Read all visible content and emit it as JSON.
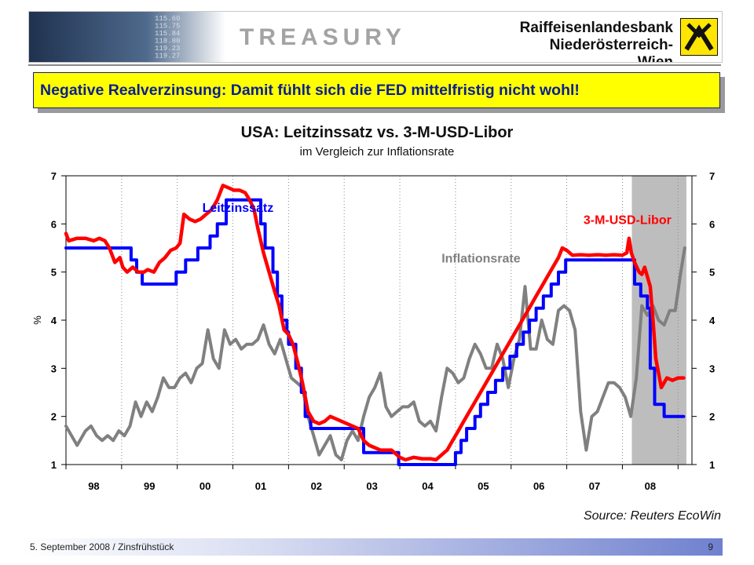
{
  "header": {
    "ticker_lines": [
      "115.60",
      "115.75",
      "115.84",
      "118.80",
      "119.23",
      "119.27"
    ],
    "title": "TREASURY",
    "bank_line1": "Raiffeisenlandesbank",
    "bank_line2": "Niederösterreich-Wien",
    "logo_icon": "raiffeisen-gable-cross-icon"
  },
  "callout": {
    "text": "Negative Realverzinsung: Damit fühlt sich die FED mittelfristig nicht wohl!"
  },
  "chart_data": {
    "type": "line",
    "title": "USA: Leitzinssatz vs. 3-M-USD-Libor",
    "subtitle": "im Vergleich zur Inflationsrate",
    "ylabel": "%",
    "ylim": [
      1,
      7
    ],
    "yticks": [
      "1",
      "2",
      "3",
      "4",
      "5",
      "6",
      "7"
    ],
    "xlim": [
      1997.5,
      2008.75
    ],
    "xticks": [
      "98",
      "99",
      "00",
      "01",
      "02",
      "03",
      "04",
      "05",
      "06",
      "07",
      "08"
    ],
    "recession_shade": [
      2007.67,
      2008.65
    ],
    "grid": "vertical-dotted",
    "series": [
      {
        "name": "Inflationsrate",
        "color": "#808080",
        "points": [
          [
            1997.5,
            1.8
          ],
          [
            1997.6,
            1.6
          ],
          [
            1997.7,
            1.4
          ],
          [
            1997.85,
            1.7
          ],
          [
            1997.95,
            1.8
          ],
          [
            1998.05,
            1.6
          ],
          [
            1998.15,
            1.5
          ],
          [
            1998.25,
            1.6
          ],
          [
            1998.35,
            1.5
          ],
          [
            1998.45,
            1.7
          ],
          [
            1998.55,
            1.6
          ],
          [
            1998.65,
            1.8
          ],
          [
            1998.75,
            2.3
          ],
          [
            1998.85,
            2.0
          ],
          [
            1998.95,
            2.3
          ],
          [
            1999.05,
            2.1
          ],
          [
            1999.15,
            2.4
          ],
          [
            1999.25,
            2.8
          ],
          [
            1999.35,
            2.6
          ],
          [
            1999.45,
            2.6
          ],
          [
            1999.55,
            2.8
          ],
          [
            1999.65,
            2.9
          ],
          [
            1999.75,
            2.7
          ],
          [
            1999.85,
            3.0
          ],
          [
            1999.95,
            3.1
          ],
          [
            2000.05,
            3.8
          ],
          [
            2000.15,
            3.2
          ],
          [
            2000.25,
            3.0
          ],
          [
            2000.35,
            3.8
          ],
          [
            2000.45,
            3.5
          ],
          [
            2000.55,
            3.6
          ],
          [
            2000.65,
            3.4
          ],
          [
            2000.75,
            3.5
          ],
          [
            2000.85,
            3.5
          ],
          [
            2000.95,
            3.6
          ],
          [
            2001.05,
            3.9
          ],
          [
            2001.15,
            3.5
          ],
          [
            2001.25,
            3.3
          ],
          [
            2001.35,
            3.6
          ],
          [
            2001.45,
            3.2
          ],
          [
            2001.55,
            2.8
          ],
          [
            2001.65,
            2.7
          ],
          [
            2001.75,
            2.6
          ],
          [
            2001.85,
            2.0
          ],
          [
            2001.95,
            1.6
          ],
          [
            2002.05,
            1.2
          ],
          [
            2002.15,
            1.4
          ],
          [
            2002.25,
            1.6
          ],
          [
            2002.35,
            1.2
          ],
          [
            2002.45,
            1.1
          ],
          [
            2002.55,
            1.5
          ],
          [
            2002.65,
            1.7
          ],
          [
            2002.75,
            1.5
          ],
          [
            2002.85,
            2.0
          ],
          [
            2002.95,
            2.4
          ],
          [
            2003.05,
            2.6
          ],
          [
            2003.15,
            2.9
          ],
          [
            2003.25,
            2.2
          ],
          [
            2003.35,
            2.0
          ],
          [
            2003.45,
            2.1
          ],
          [
            2003.55,
            2.2
          ],
          [
            2003.65,
            2.2
          ],
          [
            2003.75,
            2.3
          ],
          [
            2003.85,
            1.9
          ],
          [
            2003.95,
            1.8
          ],
          [
            2004.05,
            1.9
          ],
          [
            2004.15,
            1.7
          ],
          [
            2004.25,
            2.4
          ],
          [
            2004.35,
            3.0
          ],
          [
            2004.45,
            2.9
          ],
          [
            2004.55,
            2.7
          ],
          [
            2004.65,
            2.8
          ],
          [
            2004.75,
            3.2
          ],
          [
            2004.85,
            3.5
          ],
          [
            2004.95,
            3.3
          ],
          [
            2005.05,
            3.0
          ],
          [
            2005.15,
            3.0
          ],
          [
            2005.25,
            3.5
          ],
          [
            2005.35,
            3.2
          ],
          [
            2005.45,
            2.6
          ],
          [
            2005.55,
            3.2
          ],
          [
            2005.65,
            3.6
          ],
          [
            2005.75,
            4.7
          ],
          [
            2005.85,
            3.4
          ],
          [
            2005.95,
            3.4
          ],
          [
            2006.05,
            4.0
          ],
          [
            2006.15,
            3.6
          ],
          [
            2006.25,
            3.5
          ],
          [
            2006.35,
            4.2
          ],
          [
            2006.45,
            4.3
          ],
          [
            2006.55,
            4.2
          ],
          [
            2006.65,
            3.8
          ],
          [
            2006.75,
            2.1
          ],
          [
            2006.85,
            1.3
          ],
          [
            2006.95,
            2.0
          ],
          [
            2007.05,
            2.1
          ],
          [
            2007.15,
            2.4
          ],
          [
            2007.25,
            2.7
          ],
          [
            2007.35,
            2.7
          ],
          [
            2007.45,
            2.6
          ],
          [
            2007.55,
            2.4
          ],
          [
            2007.65,
            2.0
          ],
          [
            2007.75,
            2.8
          ],
          [
            2007.85,
            4.3
          ],
          [
            2007.95,
            4.1
          ],
          [
            2008.05,
            4.3
          ],
          [
            2008.15,
            4.0
          ],
          [
            2008.25,
            3.9
          ],
          [
            2008.35,
            4.2
          ],
          [
            2008.45,
            4.2
          ],
          [
            2008.55,
            5.0
          ],
          [
            2008.62,
            5.5
          ]
        ]
      },
      {
        "name": "Leitzinssatz",
        "color": "#0000ff",
        "step": true,
        "points": [
          [
            1997.5,
            5.5
          ],
          [
            1998.22,
            5.5
          ],
          [
            1998.67,
            5.25
          ],
          [
            1998.77,
            5.0
          ],
          [
            1998.87,
            4.75
          ],
          [
            1999.48,
            5.0
          ],
          [
            1999.65,
            5.25
          ],
          [
            1999.87,
            5.5
          ],
          [
            2000.09,
            5.75
          ],
          [
            2000.22,
            6.0
          ],
          [
            2000.38,
            6.5
          ],
          [
            2000.62,
            6.5
          ],
          [
            2001.0,
            6.0
          ],
          [
            2001.08,
            5.5
          ],
          [
            2001.22,
            5.0
          ],
          [
            2001.3,
            4.5
          ],
          [
            2001.38,
            4.0
          ],
          [
            2001.47,
            3.75
          ],
          [
            2001.5,
            3.5
          ],
          [
            2001.63,
            3.0
          ],
          [
            2001.73,
            2.5
          ],
          [
            2001.8,
            2.0
          ],
          [
            2001.9,
            1.75
          ],
          [
            2002.0,
            1.75
          ],
          [
            2002.85,
            1.25
          ],
          [
            2003.48,
            1.0
          ],
          [
            2004.5,
            1.25
          ],
          [
            2004.6,
            1.5
          ],
          [
            2004.7,
            1.75
          ],
          [
            2004.85,
            2.0
          ],
          [
            2004.95,
            2.25
          ],
          [
            2005.08,
            2.5
          ],
          [
            2005.22,
            2.75
          ],
          [
            2005.35,
            3.0
          ],
          [
            2005.48,
            3.25
          ],
          [
            2005.6,
            3.5
          ],
          [
            2005.72,
            3.75
          ],
          [
            2005.83,
            4.0
          ],
          [
            2005.95,
            4.25
          ],
          [
            2006.08,
            4.5
          ],
          [
            2006.22,
            4.75
          ],
          [
            2006.35,
            5.0
          ],
          [
            2006.48,
            5.25
          ],
          [
            2007.68,
            5.25
          ],
          [
            2007.72,
            4.75
          ],
          [
            2007.83,
            4.5
          ],
          [
            2007.95,
            4.25
          ],
          [
            2008.0,
            3.0
          ],
          [
            2008.08,
            2.25
          ],
          [
            2008.25,
            2.0
          ],
          [
            2008.6,
            2.0
          ]
        ]
      },
      {
        "name": "3-M-USD-Libor",
        "color": "#ff0000",
        "points": [
          [
            1997.5,
            5.8
          ],
          [
            1997.55,
            5.65
          ],
          [
            1997.7,
            5.7
          ],
          [
            1997.85,
            5.7
          ],
          [
            1998.0,
            5.65
          ],
          [
            1998.1,
            5.7
          ],
          [
            1998.2,
            5.65
          ],
          [
            1998.28,
            5.5
          ],
          [
            1998.38,
            5.2
          ],
          [
            1998.47,
            5.3
          ],
          [
            1998.52,
            5.1
          ],
          [
            1998.6,
            5.0
          ],
          [
            1998.7,
            5.1
          ],
          [
            1998.8,
            5.0
          ],
          [
            1998.9,
            5.0
          ],
          [
            1998.97,
            5.05
          ],
          [
            1999.08,
            5.0
          ],
          [
            1999.18,
            5.2
          ],
          [
            1999.28,
            5.3
          ],
          [
            1999.38,
            5.45
          ],
          [
            1999.48,
            5.5
          ],
          [
            1999.55,
            5.6
          ],
          [
            1999.62,
            6.2
          ],
          [
            1999.72,
            6.1
          ],
          [
            1999.82,
            6.05
          ],
          [
            1999.92,
            6.1
          ],
          [
            2000.02,
            6.2
          ],
          [
            2000.12,
            6.3
          ],
          [
            2000.22,
            6.5
          ],
          [
            2000.32,
            6.8
          ],
          [
            2000.42,
            6.75
          ],
          [
            2000.52,
            6.7
          ],
          [
            2000.62,
            6.7
          ],
          [
            2000.72,
            6.65
          ],
          [
            2000.8,
            6.5
          ],
          [
            2000.88,
            6.3
          ],
          [
            2000.95,
            5.9
          ],
          [
            2001.05,
            5.4
          ],
          [
            2001.15,
            5.0
          ],
          [
            2001.25,
            4.6
          ],
          [
            2001.33,
            4.3
          ],
          [
            2001.42,
            3.8
          ],
          [
            2001.5,
            3.7
          ],
          [
            2001.58,
            3.5
          ],
          [
            2001.67,
            3.1
          ],
          [
            2001.75,
            2.7
          ],
          [
            2001.85,
            2.1
          ],
          [
            2001.95,
            1.9
          ],
          [
            2002.05,
            1.85
          ],
          [
            2002.15,
            1.9
          ],
          [
            2002.25,
            2.0
          ],
          [
            2002.35,
            1.95
          ],
          [
            2002.45,
            1.9
          ],
          [
            2002.55,
            1.85
          ],
          [
            2002.65,
            1.8
          ],
          [
            2002.75,
            1.75
          ],
          [
            2002.85,
            1.5
          ],
          [
            2002.95,
            1.4
          ],
          [
            2003.05,
            1.35
          ],
          [
            2003.15,
            1.3
          ],
          [
            2003.25,
            1.3
          ],
          [
            2003.35,
            1.3
          ],
          [
            2003.45,
            1.2
          ],
          [
            2003.5,
            1.15
          ],
          [
            2003.6,
            1.1
          ],
          [
            2003.75,
            1.15
          ],
          [
            2003.9,
            1.12
          ],
          [
            2004.05,
            1.12
          ],
          [
            2004.15,
            1.1
          ],
          [
            2004.25,
            1.2
          ],
          [
            2004.35,
            1.3
          ],
          [
            2004.45,
            1.5
          ],
          [
            2004.55,
            1.7
          ],
          [
            2004.65,
            1.9
          ],
          [
            2004.75,
            2.1
          ],
          [
            2004.85,
            2.3
          ],
          [
            2004.95,
            2.5
          ],
          [
            2005.05,
            2.7
          ],
          [
            2005.15,
            2.9
          ],
          [
            2005.25,
            3.1
          ],
          [
            2005.35,
            3.3
          ],
          [
            2005.45,
            3.5
          ],
          [
            2005.55,
            3.7
          ],
          [
            2005.65,
            3.9
          ],
          [
            2005.75,
            4.1
          ],
          [
            2005.85,
            4.3
          ],
          [
            2005.95,
            4.5
          ],
          [
            2006.05,
            4.7
          ],
          [
            2006.15,
            4.9
          ],
          [
            2006.25,
            5.1
          ],
          [
            2006.35,
            5.3
          ],
          [
            2006.42,
            5.5
          ],
          [
            2006.5,
            5.45
          ],
          [
            2006.6,
            5.35
          ],
          [
            2006.75,
            5.36
          ],
          [
            2006.9,
            5.35
          ],
          [
            2007.05,
            5.36
          ],
          [
            2007.2,
            5.35
          ],
          [
            2007.35,
            5.36
          ],
          [
            2007.5,
            5.35
          ],
          [
            2007.58,
            5.4
          ],
          [
            2007.62,
            5.7
          ],
          [
            2007.66,
            5.4
          ],
          [
            2007.72,
            5.2
          ],
          [
            2007.8,
            5.0
          ],
          [
            2007.85,
            4.95
          ],
          [
            2007.9,
            5.1
          ],
          [
            2007.95,
            4.9
          ],
          [
            2008.0,
            4.7
          ],
          [
            2008.05,
            4.0
          ],
          [
            2008.1,
            3.2
          ],
          [
            2008.15,
            2.9
          ],
          [
            2008.2,
            2.6
          ],
          [
            2008.3,
            2.8
          ],
          [
            2008.4,
            2.75
          ],
          [
            2008.5,
            2.8
          ],
          [
            2008.6,
            2.8
          ]
        ]
      }
    ],
    "annotations": [
      {
        "text": "Leitzinssatz",
        "color": "#0000ff",
        "x": 1999.95,
        "y": 6.25
      },
      {
        "text": "3-M-USD-Libor",
        "color": "#ff0000",
        "x": 2006.8,
        "y": 6.0
      },
      {
        "text": "Inflationsrate",
        "color": "#808080",
        "x": 2004.25,
        "y": 5.2
      }
    ]
  },
  "source": "Source: Reuters EcoWin",
  "footer": {
    "date": "5. September 2008 / Zinsfrühstück",
    "page": "9"
  }
}
